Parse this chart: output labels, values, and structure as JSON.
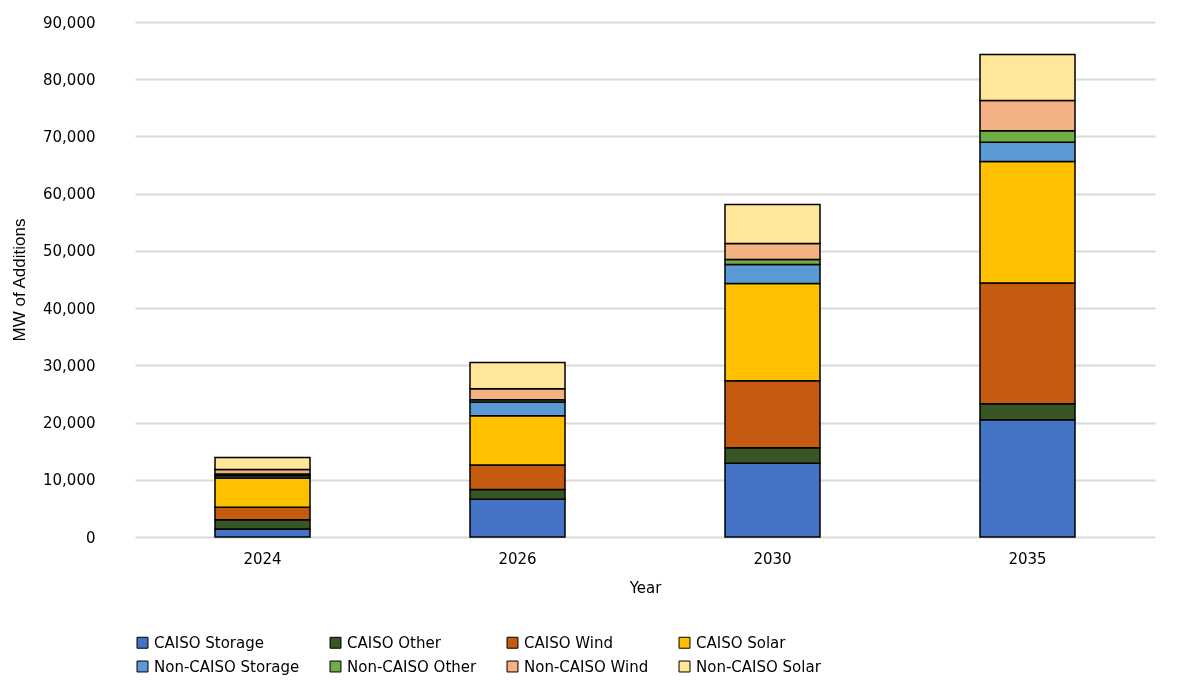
{
  "chart_data": {
    "type": "bar",
    "stacked": true,
    "xlabel": "Year",
    "ylabel": "MW of Additions",
    "categories": [
      "2024",
      "2026",
      "2030",
      "2035"
    ],
    "series": [
      {
        "name": "CAISO Storage",
        "color": "#4472c4",
        "values": [
          1400,
          6600,
          12900,
          20500
        ]
      },
      {
        "name": "CAISO Other",
        "color": "#375623",
        "values": [
          1600,
          1700,
          2700,
          2800
        ]
      },
      {
        "name": "CAISO Wind",
        "color": "#c55a11",
        "values": [
          2200,
          4300,
          11700,
          21100
        ]
      },
      {
        "name": "CAISO Solar",
        "color": "#ffc000",
        "values": [
          5100,
          8600,
          17000,
          21200
        ]
      },
      {
        "name": "Non-CAISO Storage",
        "color": "#5b9bd5",
        "values": [
          400,
          2400,
          3300,
          3400
        ]
      },
      {
        "name": "Non-CAISO Other",
        "color": "#70ad47",
        "values": [
          300,
          400,
          900,
          2000
        ]
      },
      {
        "name": "Non-CAISO Wind",
        "color": "#f4b183",
        "values": [
          800,
          1900,
          2800,
          5300
        ]
      },
      {
        "name": "Non-CAISO Solar",
        "color": "#ffe699",
        "values": [
          2100,
          4600,
          6800,
          8000
        ]
      }
    ],
    "ylim": [
      0,
      90000
    ],
    "yticks": [
      0,
      {
        "value": 10000,
        "label": "10,000"
      },
      {
        "value": 20000,
        "label": "20,000"
      },
      {
        "value": 30000,
        "label": "30,000"
      },
      {
        "value": 40000,
        "label": "40,000"
      },
      {
        "value": 50000,
        "label": "50,000"
      },
      {
        "value": 60000,
        "label": "60,000"
      },
      {
        "value": 70000,
        "label": "70,000"
      },
      {
        "value": 80000,
        "label": "80,000"
      },
      {
        "value": 90000,
        "label": "90,000"
      }
    ],
    "grid": "y",
    "legend": "bottom"
  }
}
